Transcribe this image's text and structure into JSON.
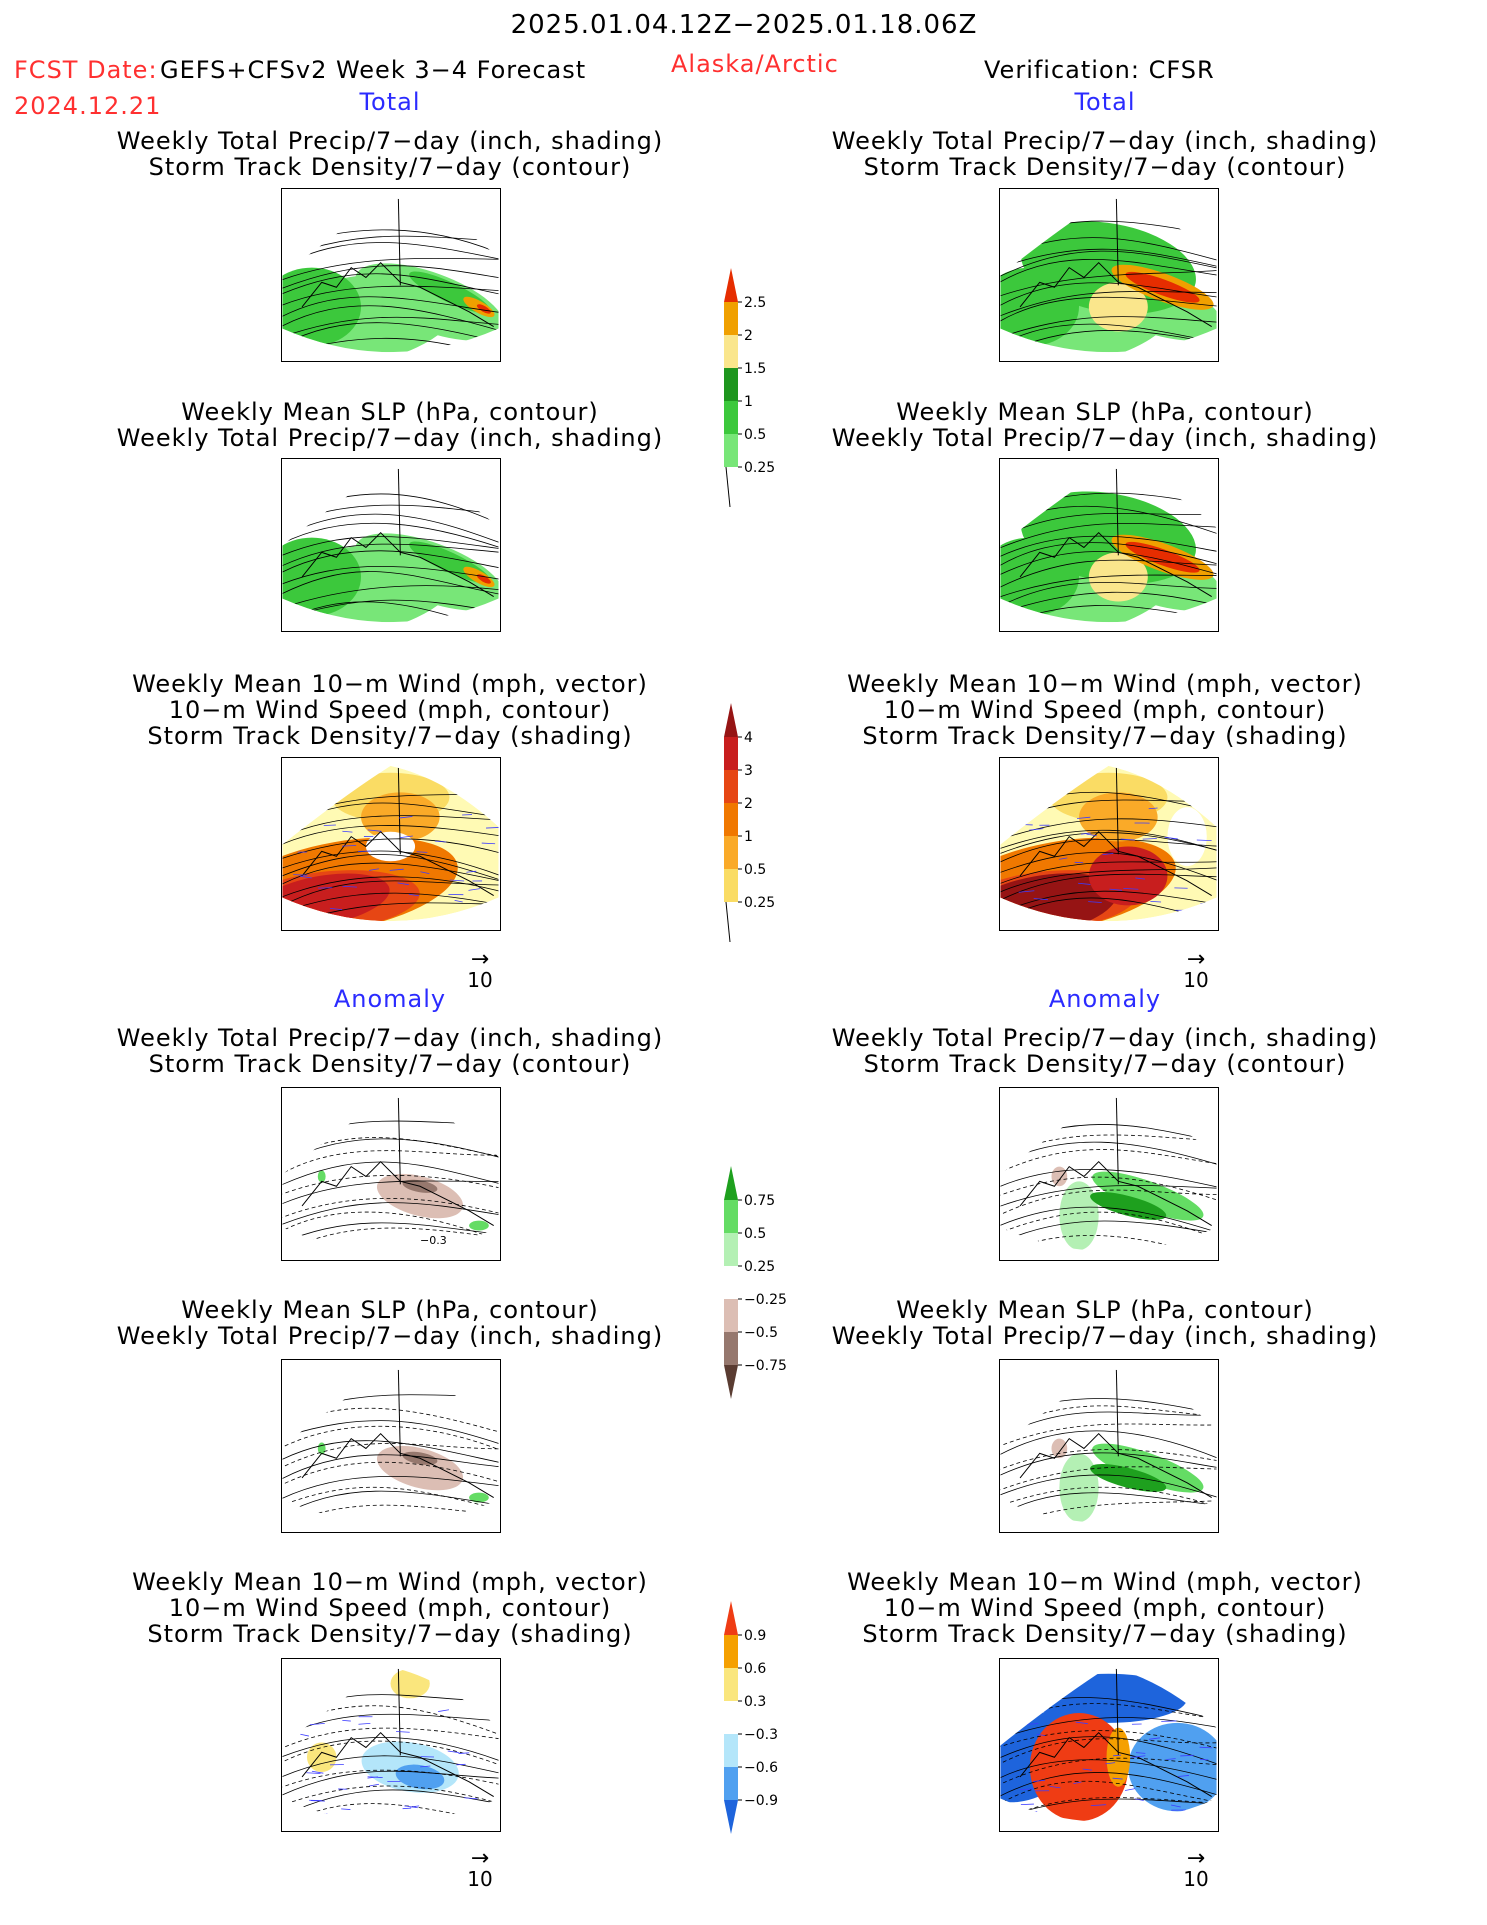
{
  "header": {
    "period": "2025.01.04.12Z−2025.01.18.06Z",
    "fcst_label": "FCST Date:",
    "model": "GEFS+CFSv2 Week 3−4 Forecast",
    "fcst_date": "2024.12.21",
    "region": "Alaska/Arctic",
    "verification": "Verification: CFSR"
  },
  "sections": {
    "total_left": "Total",
    "total_right": "Total",
    "anomaly_left": "Anomaly",
    "anomaly_right": "Anomaly"
  },
  "titles": {
    "precip_storm": [
      "Weekly Total Precip/7−day (inch, shading)",
      "Storm Track Density/7−day (contour)"
    ],
    "slp_precip": [
      "Weekly Mean SLP (hPa, contour)",
      "Weekly Total Precip/7−day (inch, shading)"
    ],
    "wind": [
      "Weekly Mean 10−m Wind (mph, vector)",
      "10−m Wind Speed (mph, contour)",
      "Storm Track Density/7−day (shading)"
    ]
  },
  "vector_ref": "10",
  "map_annotations": {
    "anom_precip_left_contour": "−0.3"
  },
  "colors": {
    "precip_total": [
      "#b4f0b4",
      "#78e678",
      "#3cc83c",
      "#1e961e",
      "#fae68c",
      "#f0a000",
      "#e62d00"
    ],
    "storm_total": [
      "#fffab4",
      "#fadc64",
      "#faaa28",
      "#f07800",
      "#e64614",
      "#c81e1e",
      "#961414"
    ],
    "precip_anom": [
      "#5a3c32",
      "#96786e",
      "#dcbeb4",
      "#ffffff",
      "#b4f0b4",
      "#64dc64",
      "#1ea01e"
    ],
    "storm_anom": [
      "#1e64dc",
      "#50a0f0",
      "#b4e6fa",
      "#ffffff",
      "#fae67d",
      "#f5a000",
      "#ef3c14"
    ]
  },
  "chart_data": [
    {
      "type": "heatmap",
      "name_ref": "precip-total-colorbar",
      "levels": [
        "0.25",
        "0.5",
        "1",
        "1.5",
        "2",
        "2.5"
      ]
    },
    {
      "type": "heatmap",
      "name_ref": "storm-total-colorbar",
      "levels": [
        "0.25",
        "0.5",
        "1",
        "2",
        "3",
        "4"
      ]
    },
    {
      "type": "heatmap",
      "name_ref": "precip-anom-colorbar",
      "levels": [
        "−0.75",
        "−0.5",
        "−0.25",
        "0.25",
        "0.5",
        "0.75"
      ]
    },
    {
      "type": "heatmap",
      "name_ref": "storm-anom-colorbar",
      "levels": [
        "−0.9",
        "−0.6",
        "−0.3",
        "0.3",
        "0.6",
        "0.9"
      ]
    }
  ]
}
